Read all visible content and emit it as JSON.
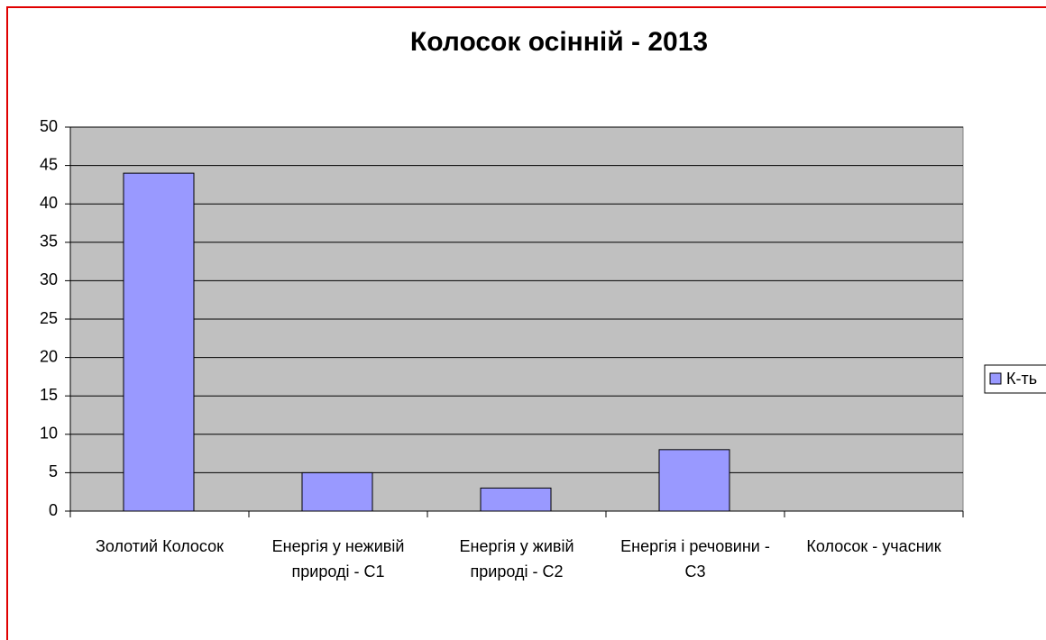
{
  "chart_data": {
    "type": "bar",
    "title": "Колосок осінній - 2013",
    "categories": [
      "Золотий Колосок",
      "Енергія у неживій природі - С1",
      "Енергія у живій природі - С2",
      "Енергія і речовини - С3",
      "Колосок - учасник"
    ],
    "series": [
      {
        "name": "К-ть",
        "color": "#9999ff",
        "values": [
          44,
          5,
          3,
          8,
          0
        ]
      }
    ],
    "ylim": [
      0,
      50
    ],
    "yticks": [
      0,
      5,
      10,
      15,
      20,
      25,
      30,
      35,
      40,
      45,
      50
    ],
    "grid": true,
    "legend": "right"
  }
}
